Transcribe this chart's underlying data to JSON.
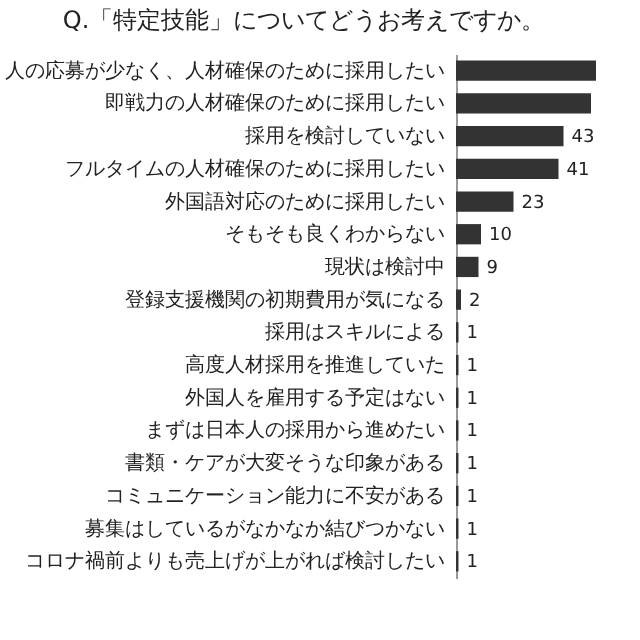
{
  "chart_data": {
    "type": "bar",
    "orientation": "horizontal",
    "title": "Q.「特定技能」についてどうお考えですか。",
    "categories": [
      "人の応募が少なく、人材確保のために採用したい",
      "即戦力の人材確保のために採用したい",
      "採用を検討していない",
      "フルタイムの人材確保のために採用したい",
      "外国語対応のために採用したい",
      "そもそも良くわからない",
      "現状は検討中",
      "登録支援機関の初期費用が気になる",
      "採用はスキルによる",
      "高度人材採用を推進していた",
      "外国人を雇用する予定はない",
      "まずは日本人の採用から進めたい",
      "書類・ケアが大変そうな印象がある",
      "コミュニケーション能力に不安がある",
      "募集はしているがなかなか結びつかない",
      "コロナ禍前よりも売上げが上がれば検討したい"
    ],
    "values": [
      56,
      54,
      43,
      41,
      23,
      10,
      9,
      2,
      1,
      1,
      1,
      1,
      1,
      1,
      1,
      1
    ],
    "value_labels": [
      null,
      null,
      "43",
      "41",
      "23",
      "10",
      "9",
      "2",
      "1",
      "1",
      "1",
      "1",
      "1",
      "1",
      "1",
      "1"
    ],
    "color": "#333333"
  }
}
